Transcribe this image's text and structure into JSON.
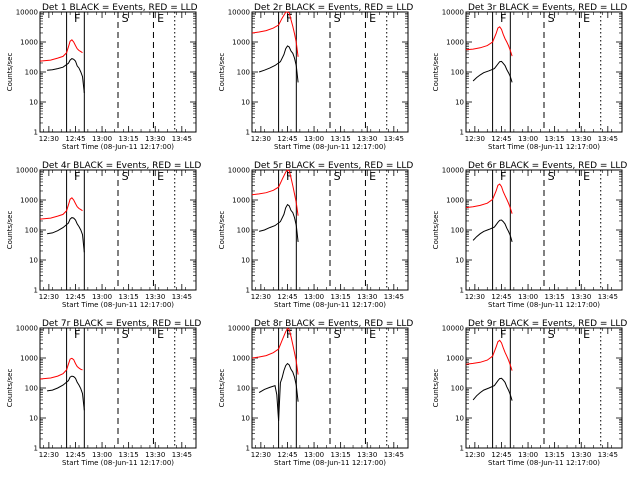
{
  "x_tick_labels": [
    "12:30",
    "12:45",
    "13:00",
    "13:15",
    "13:30",
    "13:45"
  ],
  "y_tick_labels": [
    "1",
    "10",
    "100",
    "1000",
    "10000"
  ],
  "xlabel": "Start Time (08-Jun-11 12:17:00)",
  "ylabel": "Counts/sec",
  "colors": {
    "events": "#000000",
    "lld": "#ff0000"
  },
  "chart_data": [
    {
      "type": "line",
      "title": "Det 1 BLACK = Events, RED = LLD",
      "x_unit": "minutes after 12:17:00",
      "xlim": [
        8,
        96
      ],
      "ylim": [
        1,
        10000
      ],
      "yscale": "log",
      "markers": [
        {
          "label": "F",
          "x": 29
        },
        {
          "label": "S",
          "x": 56
        },
        {
          "label": "E",
          "x": 76
        }
      ],
      "vlines": [
        {
          "x": 23,
          "style": "solid"
        },
        {
          "x": 33,
          "style": "solid"
        },
        {
          "x": 52,
          "style": "dashed"
        },
        {
          "x": 72,
          "style": "dashed"
        },
        {
          "x": 84,
          "style": "dotted"
        }
      ],
      "series": [
        {
          "color": "lld",
          "x": [
            8,
            14,
            18,
            21,
            23,
            24,
            25,
            26,
            27,
            28,
            29,
            30,
            31,
            32
          ],
          "y": [
            230,
            250,
            290,
            330,
            440,
            680,
            1060,
            1180,
            1000,
            760,
            600,
            520,
            480,
            440
          ]
        },
        {
          "color": "events",
          "x": [
            12,
            15,
            18,
            21,
            24,
            25,
            26,
            27,
            28,
            29,
            30,
            31,
            32,
            33
          ],
          "y": [
            115,
            118,
            130,
            145,
            195,
            250,
            280,
            265,
            230,
            160,
            135,
            100,
            70,
            20
          ]
        }
      ]
    },
    {
      "type": "line",
      "title": "Det 2r BLACK = Events, RED = LLD",
      "x_unit": "minutes after 12:17:00",
      "xlim": [
        8,
        96
      ],
      "ylim": [
        1,
        10000
      ],
      "yscale": "log",
      "markers": [
        {
          "label": "F",
          "x": 29
        },
        {
          "label": "S",
          "x": 56
        },
        {
          "label": "E",
          "x": 76
        }
      ],
      "vlines": [
        {
          "x": 23,
          "style": "solid"
        },
        {
          "x": 33,
          "style": "solid"
        },
        {
          "x": 52,
          "style": "dashed"
        },
        {
          "x": 72,
          "style": "dashed"
        },
        {
          "x": 84,
          "style": "dotted"
        }
      ],
      "series": [
        {
          "color": "lld",
          "x": [
            8,
            12,
            16,
            20,
            23,
            25,
            27,
            28,
            29,
            30,
            31,
            32,
            33,
            34
          ],
          "y": [
            2000,
            2150,
            2400,
            2900,
            3700,
            6200,
            9800,
            10000,
            9400,
            5500,
            3300,
            1900,
            950,
            320
          ]
        },
        {
          "color": "events",
          "x": [
            12,
            15,
            18,
            21,
            24,
            26,
            27,
            28,
            29,
            30,
            31,
            32,
            33,
            34
          ],
          "y": [
            100,
            115,
            135,
            165,
            220,
            380,
            600,
            740,
            680,
            500,
            420,
            290,
            160,
            45
          ]
        }
      ]
    },
    {
      "type": "line",
      "title": "Det 3r BLACK = Events, RED = LLD",
      "x_unit": "minutes after 12:17:00",
      "xlim": [
        8,
        96
      ],
      "ylim": [
        1,
        10000
      ],
      "yscale": "log",
      "markers": [
        {
          "label": "F",
          "x": 29
        },
        {
          "label": "S",
          "x": 56
        },
        {
          "label": "E",
          "x": 76
        }
      ],
      "vlines": [
        {
          "x": 23,
          "style": "solid"
        },
        {
          "x": 33,
          "style": "solid"
        },
        {
          "x": 52,
          "style": "dashed"
        },
        {
          "x": 72,
          "style": "dashed"
        },
        {
          "x": 84,
          "style": "dotted"
        }
      ],
      "series": [
        {
          "color": "lld",
          "x": [
            8,
            12,
            16,
            20,
            23,
            25,
            26,
            27,
            28,
            29,
            30,
            31,
            32,
            33,
            34
          ],
          "y": [
            550,
            580,
            640,
            760,
            1000,
            1900,
            2900,
            3200,
            2650,
            1800,
            1300,
            1000,
            750,
            520,
            340
          ]
        },
        {
          "color": "events",
          "x": [
            12,
            14,
            16,
            18,
            21,
            24,
            26,
            27,
            28,
            29,
            30,
            31,
            32,
            33,
            34
          ],
          "y": [
            50,
            65,
            80,
            95,
            110,
            130,
            185,
            220,
            225,
            195,
            165,
            120,
            95,
            70,
            45
          ]
        }
      ]
    },
    {
      "type": "line",
      "title": "Det 4r BLACK = Events, RED = LLD",
      "x_unit": "minutes after 12:17:00",
      "xlim": [
        8,
        96
      ],
      "ylim": [
        1,
        10000
      ],
      "yscale": "log",
      "markers": [
        {
          "label": "F",
          "x": 29
        },
        {
          "label": "S",
          "x": 56
        },
        {
          "label": "E",
          "x": 76
        }
      ],
      "vlines": [
        {
          "x": 23,
          "style": "solid"
        },
        {
          "x": 33,
          "style": "solid"
        },
        {
          "x": 52,
          "style": "dashed"
        },
        {
          "x": 72,
          "style": "dashed"
        },
        {
          "x": 84,
          "style": "dotted"
        }
      ],
      "series": [
        {
          "color": "lld",
          "x": [
            8,
            14,
            18,
            21,
            23,
            24,
            25,
            26,
            27,
            28,
            29,
            30,
            31,
            32
          ],
          "y": [
            230,
            250,
            290,
            330,
            440,
            680,
            1060,
            1180,
            1000,
            760,
            600,
            520,
            480,
            440
          ]
        },
        {
          "color": "events",
          "x": [
            12,
            15,
            18,
            21,
            24,
            25,
            26,
            27,
            28,
            29,
            30,
            31,
            32,
            33
          ],
          "y": [
            75,
            80,
            95,
            120,
            170,
            230,
            260,
            250,
            215,
            160,
            130,
            100,
            70,
            18
          ]
        }
      ]
    },
    {
      "type": "line",
      "title": "Det 5r BLACK = Events, RED = LLD",
      "x_unit": "minutes after 12:17:00",
      "xlim": [
        8,
        96
      ],
      "ylim": [
        1,
        10000
      ],
      "yscale": "log",
      "markers": [
        {
          "label": "F",
          "x": 29
        },
        {
          "label": "S",
          "x": 56
        },
        {
          "label": "E",
          "x": 76
        }
      ],
      "vlines": [
        {
          "x": 23,
          "style": "solid"
        },
        {
          "x": 33,
          "style": "solid"
        },
        {
          "x": 52,
          "style": "dashed"
        },
        {
          "x": 72,
          "style": "dashed"
        },
        {
          "x": 84,
          "style": "dotted"
        }
      ],
      "series": [
        {
          "color": "lld",
          "x": [
            8,
            12,
            16,
            20,
            23,
            25,
            27,
            28,
            29,
            30,
            31,
            32,
            33,
            34
          ],
          "y": [
            1500,
            1600,
            1750,
            2100,
            2700,
            4800,
            8500,
            10000,
            9500,
            5500,
            3000,
            1600,
            800,
            300
          ]
        },
        {
          "color": "events",
          "x": [
            12,
            15,
            18,
            21,
            24,
            26,
            27,
            28,
            29,
            30,
            31,
            32,
            33,
            34
          ],
          "y": [
            90,
            100,
            120,
            140,
            190,
            330,
            550,
            700,
            640,
            450,
            380,
            260,
            140,
            40
          ]
        }
      ]
    },
    {
      "type": "line",
      "title": "Det 6r BLACK = Events, RED = LLD",
      "x_unit": "minutes after 12:17:00",
      "xlim": [
        8,
        96
      ],
      "ylim": [
        1,
        10000
      ],
      "yscale": "log",
      "markers": [
        {
          "label": "F",
          "x": 29
        },
        {
          "label": "S",
          "x": 56
        },
        {
          "label": "E",
          "x": 76
        }
      ],
      "vlines": [
        {
          "x": 23,
          "style": "solid"
        },
        {
          "x": 33,
          "style": "solid"
        },
        {
          "x": 52,
          "style": "dashed"
        },
        {
          "x": 72,
          "style": "dashed"
        },
        {
          "x": 84,
          "style": "dotted"
        }
      ],
      "series": [
        {
          "color": "lld",
          "x": [
            8,
            12,
            16,
            20,
            23,
            25,
            26,
            27,
            28,
            29,
            30,
            31,
            32,
            33,
            34
          ],
          "y": [
            560,
            600,
            660,
            780,
            1050,
            2000,
            3100,
            3400,
            2800,
            1900,
            1400,
            1050,
            780,
            540,
            350
          ]
        },
        {
          "color": "events",
          "x": [
            12,
            14,
            16,
            18,
            21,
            24,
            26,
            27,
            28,
            29,
            30,
            31,
            32,
            33,
            34
          ],
          "y": [
            45,
            60,
            75,
            90,
            105,
            125,
            180,
            210,
            215,
            190,
            160,
            115,
            90,
            65,
            40
          ]
        }
      ]
    },
    {
      "type": "line",
      "title": "Det 7r BLACK = Events, RED = LLD",
      "x_unit": "minutes after 12:17:00",
      "xlim": [
        8,
        96
      ],
      "ylim": [
        1,
        10000
      ],
      "yscale": "log",
      "markers": [
        {
          "label": "F",
          "x": 29
        },
        {
          "label": "S",
          "x": 56
        },
        {
          "label": "E",
          "x": 76
        }
      ],
      "vlines": [
        {
          "x": 23,
          "style": "solid"
        },
        {
          "x": 33,
          "style": "solid"
        },
        {
          "x": 52,
          "style": "dashed"
        },
        {
          "x": 72,
          "style": "dashed"
        },
        {
          "x": 84,
          "style": "dotted"
        }
      ],
      "series": [
        {
          "color": "lld",
          "x": [
            8,
            14,
            18,
            21,
            23,
            24,
            25,
            26,
            27,
            28,
            29,
            30,
            31,
            32
          ],
          "y": [
            200,
            215,
            250,
            300,
            400,
            620,
            920,
            980,
            880,
            650,
            520,
            460,
            420,
            400
          ]
        },
        {
          "color": "events",
          "x": [
            12,
            15,
            18,
            21,
            24,
            25,
            26,
            27,
            28,
            29,
            30,
            31,
            32,
            33
          ],
          "y": [
            80,
            85,
            100,
            125,
            175,
            230,
            250,
            240,
            210,
            155,
            125,
            95,
            65,
            18
          ]
        }
      ]
    },
    {
      "type": "line",
      "title": "Det 8r BLACK = Events, RED = LLD",
      "x_unit": "minutes after 12:17:00",
      "xlim": [
        8,
        96
      ],
      "ylim": [
        1,
        10000
      ],
      "yscale": "log",
      "markers": [
        {
          "label": "F",
          "x": 29
        },
        {
          "label": "S",
          "x": 56
        },
        {
          "label": "E",
          "x": 76
        }
      ],
      "vlines": [
        {
          "x": 23,
          "style": "solid"
        },
        {
          "x": 33,
          "style": "solid"
        },
        {
          "x": 52,
          "style": "dashed"
        },
        {
          "x": 72,
          "style": "dashed"
        },
        {
          "x": 84,
          "style": "dotted"
        }
      ],
      "series": [
        {
          "color": "lld",
          "x": [
            8,
            12,
            16,
            20,
            23,
            25,
            27,
            28,
            29,
            30,
            31,
            32,
            33,
            34
          ],
          "y": [
            1000,
            1080,
            1200,
            1500,
            2000,
            3900,
            7500,
            9800,
            9000,
            5200,
            2800,
            1500,
            750,
            280
          ]
        },
        {
          "color": "events",
          "x": [
            12,
            15,
            18,
            21,
            22,
            23,
            24,
            25,
            26,
            27,
            28,
            29,
            30,
            31,
            32,
            33,
            34
          ],
          "y": [
            70,
            90,
            105,
            120,
            60,
            8,
            150,
            220,
            380,
            560,
            650,
            590,
            420,
            340,
            230,
            120,
            35
          ]
        }
      ]
    },
    {
      "type": "line",
      "title": "Det 9r BLACK = Events, RED = LLD",
      "x_unit": "minutes after 12:17:00",
      "xlim": [
        8,
        96
      ],
      "ylim": [
        1,
        10000
      ],
      "yscale": "log",
      "markers": [
        {
          "label": "F",
          "x": 29
        },
        {
          "label": "S",
          "x": 56
        },
        {
          "label": "E",
          "x": 76
        }
      ],
      "vlines": [
        {
          "x": 23,
          "style": "solid"
        },
        {
          "x": 33,
          "style": "solid"
        },
        {
          "x": 52,
          "style": "dashed"
        },
        {
          "x": 72,
          "style": "dashed"
        },
        {
          "x": 84,
          "style": "dotted"
        }
      ],
      "series": [
        {
          "color": "lld",
          "x": [
            8,
            12,
            16,
            20,
            23,
            25,
            26,
            27,
            28,
            29,
            30,
            31,
            32,
            33,
            34
          ],
          "y": [
            620,
            660,
            720,
            850,
            1150,
            2300,
            3500,
            3900,
            3200,
            2200,
            1550,
            1150,
            850,
            580,
            380
          ]
        },
        {
          "color": "events",
          "x": [
            12,
            14,
            16,
            18,
            21,
            24,
            26,
            27,
            28,
            29,
            30,
            31,
            32,
            33,
            34
          ],
          "y": [
            40,
            55,
            70,
            85,
            100,
            120,
            175,
            205,
            210,
            185,
            155,
            110,
            85,
            60,
            38
          ]
        }
      ]
    }
  ]
}
